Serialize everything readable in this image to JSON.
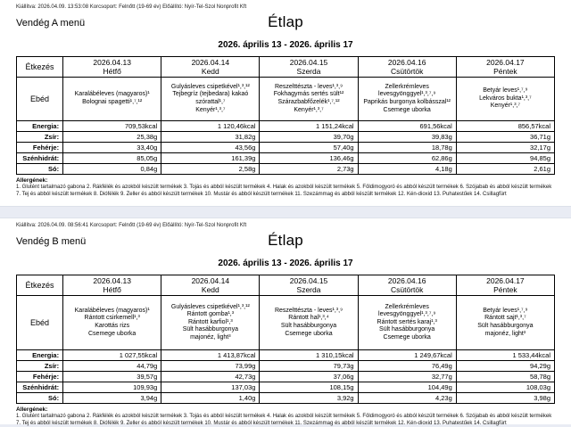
{
  "sections": [
    {
      "meta": "Kiállítva: 2026.04.09. 13:53:08 Korcsoport: Felnőtt (19-69 év) Előállító: Nyír-Tel-Szol Nonprofit Kft",
      "menu_name": "Vendég A menü",
      "title": "Étlap",
      "date_range": "2026. április 13 - 2026. április 17",
      "table": {
        "corner_label": "Étkezés",
        "meal_label": "Ebéd",
        "days": [
          {
            "date": "2026.04.13",
            "day": "Hétfő",
            "items": [
              "Karalábéleves (magyaros)¹",
              "Bolognai spagetti¹,⁷,¹²"
            ]
          },
          {
            "date": "2026.04.14",
            "day": "Kedd",
            "items": [
              "Gulyásleves csipetkével¹,³,¹²",
              "Tejbegríz (tejbedara) kakaó szórattal¹,⁷",
              "Kenyér¹,³,⁷"
            ]
          },
          {
            "date": "2026.04.15",
            "day": "Szerda",
            "items": [
              "Reszelttészta - leves¹,³,⁹",
              "Fokhagymás sertés sült¹²",
              "Szárazbabfőzelék¹,⁷,¹²",
              "Kenyér¹,³,⁷"
            ]
          },
          {
            "date": "2026.04.16",
            "day": "Csütörtök",
            "items": [
              "Zellerkrémleves levesgyönggyel¹,³,⁷,⁹",
              "Paprikás burgonya kolbásszal¹²",
              "Csemege uborka"
            ]
          },
          {
            "date": "2026.04.17",
            "day": "Péntek",
            "items": [
              "Betyár leves¹,⁷,⁹",
              "Lekváros bukta¹,³,⁷",
              "Kenyér¹,³,⁷"
            ]
          }
        ],
        "nutrition": [
          {
            "label": "Energia:",
            "values": [
              "709,53kcal",
              "1 120,46kcal",
              "1 151,24kcal",
              "691,56kcal",
              "856,57kcal"
            ]
          },
          {
            "label": "Zsír:",
            "values": [
              "25,38g",
              "31,82g",
              "39,70g",
              "39,83g",
              "36,71g"
            ]
          },
          {
            "label": "Fehérje:",
            "values": [
              "33,40g",
              "43,56g",
              "57,40g",
              "18,78g",
              "32,17g"
            ]
          },
          {
            "label": "Szénhidrát:",
            "values": [
              "85,05g",
              "161,39g",
              "136,46g",
              "62,86g",
              "94,85g"
            ]
          },
          {
            "label": "Só:",
            "values": [
              "0,84g",
              "2,58g",
              "2,73g",
              "4,18g",
              "2,61g"
            ]
          }
        ]
      },
      "allergens_heading": "Allergének:",
      "allergens_text": "1. Glutént tartalmazó gabona 2. Rákfélék és azokból készült termékek 3. Tojás és abból készült termékek 4. Halak és azokból készült termékek 5. Földimogyoró és abból készült termékek 6. Szójabab és abból készült termékek 7. Tej és abból készült termékek 8. Diófélék 9. Zeller és abból készült termékek 10. Mustár és abból készült termékek 11. Szezámmag és abból készült termékek 12. Kén-dioxid 13. Puhatestűek 14. Csillagfürt"
    },
    {
      "meta": "Kiállítva: 2026.04.09. 08:56:41 Korcsoport: Felnőtt (19-69 év) Előállító: Nyír-Tel-Szol Nonprofit Kft",
      "menu_name": "Vendég B menü",
      "title": "Étlap",
      "date_range": "2026. április 13 - 2026. április 17",
      "table": {
        "corner_label": "Étkezés",
        "meal_label": "Ebéd",
        "days": [
          {
            "date": "2026.04.13",
            "day": "Hétfő",
            "items": [
              "Karalábéleves (magyaros)¹",
              "Rántott csirkemell¹,³",
              "Karottás rizs",
              "Csemege uborka"
            ]
          },
          {
            "date": "2026.04.14",
            "day": "Kedd",
            "items": [
              "Gulyásleves csipetkével¹,³,¹²",
              "Rántott gomba¹,³",
              "Rántott karfiol¹,³",
              "Sült hasábburgonya",
              "majonéz, light³"
            ]
          },
          {
            "date": "2026.04.15",
            "day": "Szerda",
            "items": [
              "Reszelttészta - leves¹,³,⁹",
              "Rántott hal¹,³,⁴",
              "Sült hasábburgonya",
              "Csemege uborka"
            ]
          },
          {
            "date": "2026.04.16",
            "day": "Csütörtök",
            "items": [
              "Zellerkrémleves levesgyönggyel¹,³,⁷,⁹",
              "Rántott sertés karaj¹,³",
              "Sült hasábburgonya",
              "Csemege uborka"
            ]
          },
          {
            "date": "2026.04.17",
            "day": "Péntek",
            "items": [
              "Betyár leves¹,⁷,⁹",
              "Rántott sajt¹,³,⁷",
              "Sült hasábburgonya",
              "majonéz, light³"
            ]
          }
        ],
        "nutrition": [
          {
            "label": "Energia:",
            "values": [
              "1 027,55kcal",
              "1 413,87kcal",
              "1 310,15kcal",
              "1 249,67kcal",
              "1 533,44kcal"
            ]
          },
          {
            "label": "Zsír:",
            "values": [
              "44,79g",
              "73,99g",
              "79,73g",
              "76,49g",
              "94,29g"
            ]
          },
          {
            "label": "Fehérje:",
            "values": [
              "39,57g",
              "42,73g",
              "37,06g",
              "32,77g",
              "58,78g"
            ]
          },
          {
            "label": "Szénhidrát:",
            "values": [
              "109,93g",
              "137,03g",
              "108,15g",
              "104,49g",
              "108,03g"
            ]
          },
          {
            "label": "Só:",
            "values": [
              "3,94g",
              "1,40g",
              "3,92g",
              "4,23g",
              "3,98g"
            ]
          }
        ]
      },
      "allergens_heading": "Allergének:",
      "allergens_text": "1. Glutént tartalmazó gabona 2. Rákfélék és azokból készült termékek 3. Tojás és abból készült termékek 4. Halak és azokból készült termékek 5. Földimogyoró és abból készült termékek 6. Szójabab és abból készült termékek 7. Tej és abból készült termékek 8. Diófélék 9. Zeller és abból készült termékek 10. Mustár és abból készült termékek 11. Szezámmag és abból készült termékek 12. Kén-dioxid 13. Puhatestűek 14. Csillagfürt"
    }
  ]
}
